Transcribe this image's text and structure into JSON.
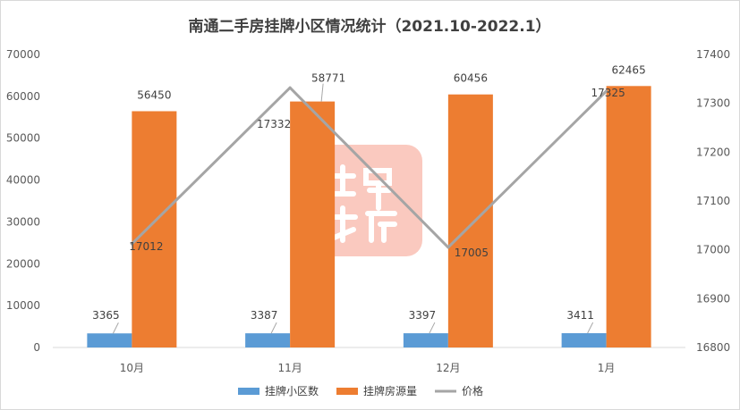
{
  "chart_data": {
    "type": "bar",
    "title": "南通二手房挂牌小区情况统计（2021.10-2022.1）",
    "categories": [
      "10月",
      "11月",
      "12月",
      "1月"
    ],
    "series": [
      {
        "name": "挂牌小区数",
        "type": "bar",
        "axis": "left",
        "values": [
          3365,
          3387,
          3397,
          3411
        ],
        "color": "#5b9bd5"
      },
      {
        "name": "挂牌房源量",
        "type": "bar",
        "axis": "left",
        "values": [
          56450,
          58771,
          60456,
          62465
        ],
        "color": "#ed7d31"
      },
      {
        "name": "价格",
        "type": "line",
        "axis": "right",
        "values": [
          17012,
          17332,
          17005,
          17325
        ],
        "color": "#a5a5a5"
      }
    ],
    "y_left": {
      "min": 0,
      "max": 70000,
      "ticks": [
        0,
        10000,
        20000,
        30000,
        40000,
        50000,
        60000,
        70000
      ]
    },
    "y_right": {
      "min": 16800,
      "max": 17400,
      "ticks": [
        16800,
        16900,
        17000,
        17100,
        17200,
        17300,
        17400
      ]
    },
    "legend_position": "bottom",
    "grid": false
  }
}
